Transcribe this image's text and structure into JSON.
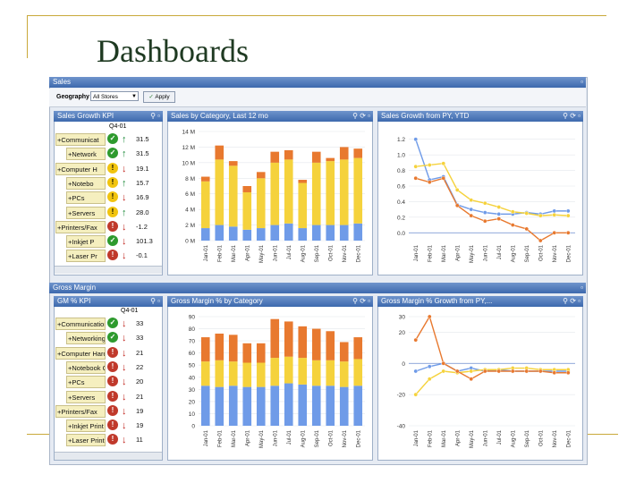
{
  "slide": {
    "title": "Dashboards"
  },
  "sales_window": {
    "title": "Sales",
    "geography_label": "Geography",
    "geography_value": "All Stores",
    "apply_label": "Apply",
    "kpi_panel": {
      "title": "Sales Growth KPI",
      "period": "Q4-01",
      "rows": [
        {
          "label": "Communicat",
          "indent": 0,
          "status": "ok",
          "trend": "up",
          "value": "31.5"
        },
        {
          "label": "Network",
          "indent": 1,
          "status": "ok",
          "trend": "up",
          "value": "31.5"
        },
        {
          "label": "Computer H",
          "indent": 0,
          "status": "warn",
          "trend": "down",
          "value": "19.1"
        },
        {
          "label": "Notebo",
          "indent": 1,
          "status": "warn",
          "trend": "up",
          "value": "15.7"
        },
        {
          "label": "PCs",
          "indent": 1,
          "status": "warn",
          "trend": "down",
          "value": "16.9"
        },
        {
          "label": "Servers",
          "indent": 1,
          "status": "warn",
          "trend": "up",
          "value": "28.0"
        },
        {
          "label": "Printers/Fax",
          "indent": 0,
          "status": "bad",
          "trend": "down",
          "value": "-1.2"
        },
        {
          "label": "Inkjet P",
          "indent": 1,
          "status": "ok",
          "trend": "down",
          "value": "101.3"
        },
        {
          "label": "Laser Pr",
          "indent": 1,
          "status": "bad",
          "trend": "down",
          "value": "-0.1"
        }
      ]
    },
    "category_panel": {
      "title": "Sales by Category, Last 12 mo"
    },
    "growth_panel": {
      "title": "Sales Growth from PY, YTD"
    }
  },
  "margin_window": {
    "title": "Gross Margin",
    "kpi_panel": {
      "title": "GM % KPI",
      "period": "Q4-01",
      "rows": [
        {
          "label": "Communication",
          "indent": 0,
          "status": "ok",
          "trend": "down",
          "value": "33"
        },
        {
          "label": "Networking",
          "indent": 1,
          "status": "ok",
          "trend": "down",
          "value": "33"
        },
        {
          "label": "Computer Hard",
          "indent": 0,
          "status": "bad",
          "trend": "down",
          "value": "21"
        },
        {
          "label": "Notebook C",
          "indent": 1,
          "status": "bad",
          "trend": "down",
          "value": "22"
        },
        {
          "label": "PCs",
          "indent": 1,
          "status": "bad",
          "trend": "down",
          "value": "20"
        },
        {
          "label": "Servers",
          "indent": 1,
          "status": "bad",
          "trend": "down",
          "value": "21"
        },
        {
          "label": "Printers/Fax",
          "indent": 0,
          "status": "bad",
          "trend": "down",
          "value": "19"
        },
        {
          "label": "Inkjet Print",
          "indent": 1,
          "status": "bad",
          "trend": "down",
          "value": "19"
        },
        {
          "label": "Laser Print",
          "indent": 1,
          "status": "bad",
          "trend": "down",
          "value": "11"
        }
      ]
    },
    "category_panel": {
      "title": "Gross Margin % by Category"
    },
    "growth_panel": {
      "title": "Gross Margin % Growth from PY,..."
    }
  },
  "colors": {
    "blue": "#6f9be8",
    "yellow": "#f5d23c",
    "orange": "#e8792f"
  },
  "chart_data": [
    {
      "type": "bar",
      "stacked": true,
      "title": "Sales by Category, Last 12 mo",
      "categories": [
        "Jan-01",
        "Feb-01",
        "Mar-01",
        "Apr-01",
        "May-01",
        "Jun-01",
        "Jul-01",
        "Aug-01",
        "Sep-01",
        "Oct-01",
        "Nov-01",
        "Dec-01"
      ],
      "yticks": [
        "0 M",
        "2 M",
        "4 M",
        "6 M",
        "8 M",
        "10 M",
        "12 M",
        "14 M"
      ],
      "ylim": [
        0,
        14
      ],
      "series": [
        {
          "color": "blue",
          "values": [
            1.6,
            2.0,
            1.8,
            1.4,
            1.6,
            2.0,
            2.2,
            1.6,
            2.0,
            2.0,
            2.0,
            2.2
          ]
        },
        {
          "color": "yellow",
          "values": [
            6.0,
            8.4,
            7.8,
            4.8,
            6.4,
            8.0,
            8.2,
            5.8,
            8.0,
            8.2,
            8.4,
            8.4
          ]
        },
        {
          "color": "orange",
          "values": [
            0.6,
            1.8,
            0.6,
            0.8,
            0.8,
            1.4,
            1.2,
            0.4,
            1.4,
            0.4,
            1.6,
            1.2
          ]
        }
      ]
    },
    {
      "type": "line",
      "title": "Sales Growth from PY, YTD",
      "categories": [
        "Jan-01",
        "Feb-01",
        "Mar-01",
        "Apr-01",
        "May-01",
        "Jun-01",
        "Jul-01",
        "Aug-01",
        "Sep-01",
        "Oct-01",
        "Nov-01",
        "Dec-01"
      ],
      "yticks": [
        "0.0",
        "0.2",
        "0.4",
        "0.6",
        "0.8",
        "1.0",
        "1.2"
      ],
      "ylim": [
        -0.1,
        1.3
      ],
      "series": [
        {
          "color": "blue",
          "values": [
            1.2,
            0.68,
            0.72,
            0.36,
            0.3,
            0.26,
            0.24,
            0.24,
            0.26,
            0.24,
            0.28,
            0.28
          ]
        },
        {
          "color": "yellow",
          "values": [
            0.85,
            0.87,
            0.89,
            0.55,
            0.42,
            0.38,
            0.33,
            0.27,
            0.25,
            0.22,
            0.23,
            0.22
          ]
        },
        {
          "color": "orange",
          "values": [
            0.7,
            0.65,
            0.7,
            0.35,
            0.22,
            0.15,
            0.18,
            0.1,
            0.05,
            -0.1,
            0.0,
            0.0
          ]
        }
      ]
    },
    {
      "type": "bar",
      "stacked": true,
      "title": "Gross Margin % by Category",
      "categories": [
        "Jan-01",
        "Feb-01",
        "Mar-01",
        "Apr-01",
        "May-01",
        "Jun-01",
        "Jul-01",
        "Aug-01",
        "Sep-01",
        "Oct-01",
        "Nov-01",
        "Dec-01"
      ],
      "yticks": [
        "0",
        "10",
        "20",
        "30",
        "40",
        "50",
        "60",
        "70",
        "80",
        "90"
      ],
      "ylim": [
        0,
        90
      ],
      "series": [
        {
          "color": "blue",
          "values": [
            33,
            32,
            33,
            32,
            32,
            33,
            35,
            34,
            33,
            33,
            32,
            33
          ]
        },
        {
          "color": "yellow",
          "values": [
            20,
            22,
            20,
            20,
            20,
            23,
            22,
            22,
            21,
            21,
            21,
            22
          ]
        },
        {
          "color": "orange",
          "values": [
            20,
            22,
            22,
            16,
            16,
            32,
            29,
            26,
            26,
            24,
            16,
            18
          ]
        }
      ]
    },
    {
      "type": "line",
      "title": "Gross Margin % Growth from PY,...",
      "categories": [
        "Jan-01",
        "Feb-01",
        "Mar-01",
        "Apr-01",
        "May-01",
        "Jun-01",
        "Jul-01",
        "Aug-01",
        "Sep-01",
        "Oct-01",
        "Nov-01",
        "Dec-01"
      ],
      "yticks": [
        "-40",
        "-20",
        "0",
        "20",
        "30"
      ],
      "ytick_values": [
        -40,
        -20,
        0,
        20,
        30
      ],
      "ylim": [
        -40,
        30
      ],
      "series": [
        {
          "color": "blue",
          "values": [
            -5,
            -2,
            0,
            -5,
            -3,
            -5,
            -4,
            -5,
            -5,
            -5,
            -5,
            -5
          ]
        },
        {
          "color": "yellow",
          "values": [
            -20,
            -10,
            -5,
            -6,
            -5,
            -4,
            -4,
            -3,
            -3,
            -4,
            -4,
            -4
          ]
        },
        {
          "color": "orange",
          "values": [
            15,
            30,
            0,
            -5,
            -10,
            -5,
            -5,
            -5,
            -5,
            -5,
            -6,
            -6
          ]
        }
      ]
    }
  ]
}
